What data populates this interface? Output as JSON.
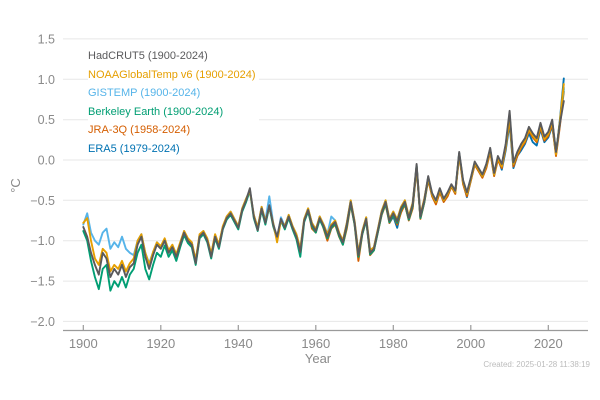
{
  "chart_data": {
    "type": "line",
    "title": "",
    "xlabel": "Year",
    "ylabel": "°C",
    "footer": "Created: 2025-01-28 11:38:19",
    "grid": "horizontal",
    "legend_position": "top-left",
    "xlim": [
      1895,
      2030
    ],
    "ylim": [
      -2.1,
      1.55
    ],
    "x_ticks": [
      1900,
      1920,
      1940,
      1960,
      1980,
      2000,
      2020
    ],
    "y_ticks": [
      1.5,
      1.0,
      0.5,
      0.0,
      -0.5,
      -1.0,
      -1.5,
      -2.0
    ],
    "y_tick_labels": [
      "1.5",
      "1.0",
      "0.5",
      "0.0",
      "−0.5",
      "−1.0",
      "−1.5",
      "−2.0"
    ],
    "axis_color": "#9a9a9a",
    "gridline_color": "#e7e7e7",
    "tick_label_color": "#8a8a8a",
    "series": [
      {
        "name": "HadCRUT5 (1900-2024)",
        "color": "#5A5A5C",
        "start_year": 1900,
        "end_year": 2024,
        "values": [
          -0.83,
          -0.95,
          -1.15,
          -1.3,
          -1.42,
          -1.15,
          -1.22,
          -1.45,
          -1.35,
          -1.42,
          -1.3,
          -1.45,
          -1.33,
          -1.28,
          -1.05,
          -0.95,
          -1.2,
          -1.35,
          -1.18,
          -1.05,
          -1.1,
          -1.0,
          -1.15,
          -1.08,
          -1.2,
          -1.05,
          -0.9,
          -1.0,
          -1.05,
          -1.28,
          -0.95,
          -0.9,
          -1.0,
          -1.2,
          -0.95,
          -1.08,
          -0.85,
          -0.72,
          -0.66,
          -0.75,
          -0.84,
          -0.62,
          -0.5,
          -0.35,
          -0.7,
          -0.87,
          -0.6,
          -0.78,
          -0.56,
          -0.8,
          -0.95,
          -0.73,
          -0.84,
          -0.7,
          -0.84,
          -0.95,
          -1.14,
          -0.75,
          -0.62,
          -0.8,
          -0.88,
          -0.72,
          -0.82,
          -0.95,
          -0.82,
          -0.77,
          -0.92,
          -1.02,
          -0.8,
          -0.52,
          -0.78,
          -1.18,
          -0.9,
          -0.73,
          -1.15,
          -1.1,
          -0.88,
          -0.65,
          -0.52,
          -0.75,
          -0.66,
          -0.76,
          -0.6,
          -0.52,
          -0.72,
          -0.55,
          -0.05,
          -0.7,
          -0.5,
          -0.2,
          -0.41,
          -0.5,
          -0.35,
          -0.48,
          -0.4,
          -0.3,
          -0.38,
          0.1,
          -0.25,
          -0.4,
          -0.22,
          -0.02,
          -0.1,
          -0.18,
          -0.05,
          0.15,
          -0.16,
          0.05,
          -0.05,
          0.2,
          0.61,
          -0.03,
          0.1,
          0.2,
          0.27,
          0.41,
          0.33,
          0.27,
          0.46,
          0.29,
          0.35,
          0.5,
          0.1,
          0.45,
          0.73
        ]
      },
      {
        "name": "NOAAGlobalTemp v6 (1900-2024)",
        "color": "#E69F00",
        "start_year": 1900,
        "end_year": 2024,
        "values": [
          -0.78,
          -0.72,
          -1.0,
          -1.22,
          -1.3,
          -1.1,
          -1.15,
          -1.38,
          -1.3,
          -1.35,
          -1.25,
          -1.38,
          -1.28,
          -1.22,
          -1.0,
          -0.92,
          -1.15,
          -1.3,
          -1.14,
          -1.02,
          -1.07,
          -0.97,
          -1.12,
          -1.05,
          -1.17,
          -1.02,
          -0.88,
          -0.97,
          -1.02,
          -1.24,
          -0.92,
          -0.88,
          -0.97,
          -1.16,
          -0.92,
          -1.05,
          -0.82,
          -0.7,
          -0.64,
          -0.73,
          -0.82,
          -0.6,
          -0.48,
          -0.38,
          -0.68,
          -0.84,
          -0.58,
          -0.76,
          -0.58,
          -0.78,
          -1.02,
          -0.75,
          -0.82,
          -0.68,
          -0.82,
          -0.92,
          -1.1,
          -0.73,
          -0.6,
          -0.78,
          -0.86,
          -0.7,
          -0.8,
          -0.92,
          -0.8,
          -0.75,
          -0.9,
          -1.0,
          -0.78,
          -0.5,
          -0.76,
          -1.15,
          -0.88,
          -0.71,
          -1.12,
          -1.08,
          -0.86,
          -0.63,
          -0.5,
          -0.73,
          -0.64,
          -0.74,
          -0.58,
          -0.5,
          -0.7,
          -0.53,
          -0.08,
          -0.68,
          -0.48,
          -0.22,
          -0.43,
          -0.52,
          -0.37,
          -0.5,
          -0.42,
          -0.32,
          -0.4,
          0.07,
          -0.27,
          -0.42,
          -0.24,
          -0.04,
          -0.12,
          -0.2,
          -0.07,
          0.12,
          -0.18,
          0.02,
          -0.08,
          0.17,
          0.52,
          -0.05,
          0.08,
          0.17,
          0.24,
          0.38,
          0.3,
          0.24,
          0.43,
          0.26,
          0.32,
          0.47,
          0.07,
          0.48,
          0.94
        ]
      },
      {
        "name": "GISTEMP (1900-2024)",
        "color": "#56B4E9",
        "start_year": 1900,
        "end_year": 2024,
        "values": [
          -0.8,
          -0.66,
          -0.9,
          -1.0,
          -1.05,
          -0.9,
          -0.85,
          -1.1,
          -1.02,
          -1.08,
          -0.95,
          -1.1,
          -1.15,
          -1.18,
          -1.0,
          -0.92,
          -1.15,
          -1.28,
          -1.14,
          -1.02,
          -1.07,
          -0.98,
          -1.12,
          -1.06,
          -1.17,
          -1.03,
          -0.88,
          -0.98,
          -1.02,
          -1.25,
          -0.93,
          -0.88,
          -0.98,
          -1.17,
          -0.93,
          -1.05,
          -0.83,
          -0.7,
          -0.64,
          -0.73,
          -0.82,
          -0.6,
          -0.48,
          -0.37,
          -0.68,
          -0.84,
          -0.58,
          -0.75,
          -0.45,
          -0.78,
          -0.97,
          -0.71,
          -0.82,
          -0.68,
          -0.82,
          -0.92,
          -1.1,
          -0.73,
          -0.6,
          -0.78,
          -0.86,
          -0.7,
          -0.8,
          -0.92,
          -0.7,
          -0.75,
          -0.9,
          -1.0,
          -0.78,
          -0.5,
          -0.76,
          -1.15,
          -0.88,
          -0.71,
          -1.12,
          -1.08,
          -0.86,
          -0.63,
          -0.5,
          -0.73,
          -0.64,
          -0.74,
          -0.58,
          -0.5,
          -0.7,
          -0.53,
          -0.07,
          -0.69,
          -0.49,
          -0.21,
          -0.42,
          -0.51,
          -0.36,
          -0.49,
          -0.41,
          -0.31,
          -0.39,
          0.08,
          -0.26,
          -0.41,
          -0.23,
          -0.03,
          -0.11,
          -0.19,
          -0.06,
          0.13,
          -0.17,
          0.03,
          -0.07,
          0.18,
          0.55,
          -0.04,
          0.09,
          0.18,
          0.25,
          0.39,
          0.31,
          0.25,
          0.44,
          0.27,
          0.33,
          0.48,
          0.09,
          0.46,
          0.9
        ]
      },
      {
        "name": "Berkeley Earth (1900-2024)",
        "color": "#009E73",
        "start_year": 1900,
        "end_year": 2024,
        "values": [
          -0.88,
          -1.0,
          -1.25,
          -1.45,
          -1.6,
          -1.35,
          -1.3,
          -1.62,
          -1.5,
          -1.57,
          -1.45,
          -1.58,
          -1.42,
          -1.35,
          -1.15,
          -1.05,
          -1.35,
          -1.48,
          -1.3,
          -1.15,
          -1.2,
          -1.06,
          -1.2,
          -1.12,
          -1.25,
          -1.08,
          -0.93,
          -1.03,
          -1.08,
          -1.3,
          -0.97,
          -0.92,
          -1.02,
          -1.22,
          -0.97,
          -1.1,
          -0.86,
          -0.74,
          -0.68,
          -0.77,
          -0.86,
          -0.64,
          -0.52,
          -0.38,
          -0.72,
          -0.88,
          -0.62,
          -0.8,
          -0.58,
          -0.82,
          -0.98,
          -0.75,
          -0.86,
          -0.72,
          -0.86,
          -0.98,
          -1.2,
          -0.77,
          -0.64,
          -0.82,
          -0.9,
          -0.74,
          -0.84,
          -0.97,
          -0.84,
          -0.79,
          -0.94,
          -1.05,
          -0.82,
          -0.54,
          -0.8,
          -1.2,
          -0.92,
          -0.75,
          -1.17,
          -1.12,
          -0.9,
          -0.67,
          -0.54,
          -0.77,
          -0.68,
          -0.78,
          -0.62,
          -0.54,
          -0.74,
          -0.57,
          -0.07,
          -0.72,
          -0.52,
          -0.22,
          -0.43,
          -0.52,
          -0.37,
          -0.5,
          -0.42,
          -0.32,
          -0.4,
          0.08,
          -0.27,
          -0.42,
          -0.24,
          -0.04,
          -0.12,
          -0.2,
          -0.07,
          0.13,
          -0.18,
          0.03,
          -0.07,
          0.18,
          0.56,
          -0.05,
          0.08,
          0.18,
          0.25,
          0.39,
          0.31,
          0.25,
          0.44,
          0.27,
          0.33,
          0.48,
          0.08,
          0.47,
          0.88
        ]
      },
      {
        "name": "JRA-3Q (1958-2024)",
        "color": "#D55E00",
        "start_year": 1958,
        "end_year": 2024,
        "values": [
          -0.62,
          -0.85,
          -0.9,
          -0.7,
          -0.85,
          -1.0,
          -0.85,
          -0.8,
          -0.95,
          -1.05,
          -0.85,
          -0.55,
          -0.8,
          -1.25,
          -0.92,
          -0.75,
          -1.18,
          -1.12,
          -0.9,
          -0.68,
          -0.55,
          -0.78,
          -0.68,
          -0.8,
          -0.65,
          -0.55,
          -0.75,
          -0.6,
          -0.1,
          -0.73,
          -0.53,
          -0.25,
          -0.45,
          -0.55,
          -0.4,
          -0.52,
          -0.45,
          -0.33,
          -0.42,
          0.06,
          -0.3,
          -0.45,
          -0.26,
          -0.06,
          -0.14,
          -0.22,
          -0.1,
          0.1,
          -0.2,
          0.0,
          -0.1,
          0.15,
          0.5,
          -0.08,
          0.05,
          0.15,
          0.22,
          0.36,
          0.28,
          0.22,
          0.4,
          0.24,
          0.3,
          0.44,
          0.05,
          0.42,
          0.85
        ]
      },
      {
        "name": "ERA5 (1979-2024)",
        "color": "#0072B2",
        "start_year": 1979,
        "end_year": 2024,
        "values": [
          -0.78,
          -0.7,
          -0.84,
          -0.62,
          -0.55,
          -0.74,
          -0.58,
          -0.08,
          -0.72,
          -0.52,
          -0.22,
          -0.44,
          -0.52,
          -0.38,
          -0.5,
          -0.43,
          -0.32,
          -0.4,
          0.08,
          -0.28,
          -0.46,
          -0.25,
          -0.05,
          -0.12,
          -0.2,
          -0.08,
          0.12,
          -0.18,
          0.02,
          -0.12,
          0.12,
          0.45,
          -0.1,
          0.05,
          0.12,
          0.2,
          0.33,
          0.22,
          0.18,
          0.38,
          0.22,
          0.28,
          0.42,
          0.08,
          0.5,
          1.01
        ]
      }
    ]
  }
}
